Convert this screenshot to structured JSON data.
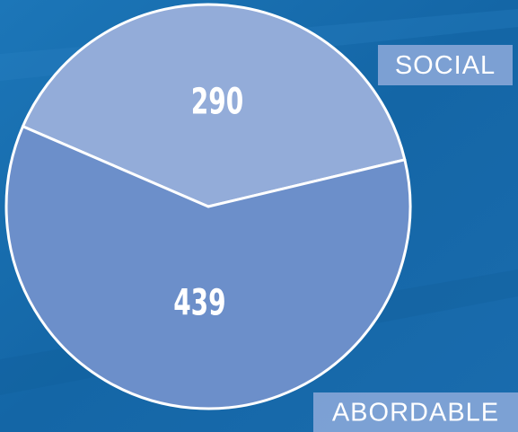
{
  "chart_data": {
    "type": "pie",
    "categories": [
      "SOCIAL",
      "ABORDABLE"
    ],
    "values": [
      290,
      439
    ],
    "colors": [
      "#93acd9",
      "#6c8fca"
    ]
  }
}
